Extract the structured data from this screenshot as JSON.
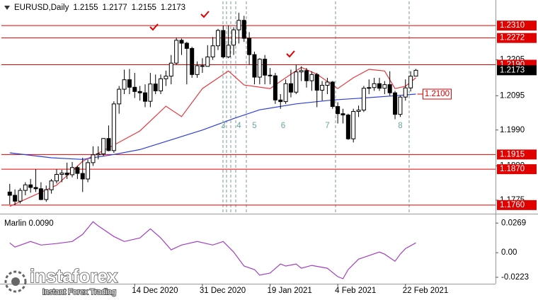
{
  "chart_data": [
    {
      "type": "candlestick",
      "symbol": "EURUSD,Daily",
      "xlim": [
        -1.6,
        93.3
      ],
      "ylim": [
        1.1738,
        1.2384
      ],
      "xticks": [
        {
          "value": 24,
          "label": "14 Dec 2020"
        },
        {
          "value": 37,
          "label": "31 Dec 2020"
        },
        {
          "value": 50,
          "label": "19 Jan 2021"
        },
        {
          "value": 63,
          "label": "4 Feb 2021"
        },
        {
          "value": 76,
          "label": "22 Feb 2021"
        }
      ],
      "yticks": [
        1.2205,
        1.2095,
        {
          "value": 1.199,
          "label": "1.1990"
        },
        {
          "value": 1.188,
          "label": "1.1880"
        },
        1.1775
      ],
      "candles": {
        "up_color": "#ffffff",
        "down_color": "#000000",
        "open": [
          1.18,
          1.179,
          1.1772,
          1.1805,
          1.1822,
          1.1814,
          1.181,
          1.1777,
          1.1807,
          1.1834,
          1.1854,
          1.1858,
          1.1853,
          1.1875,
          1.1857,
          1.184,
          1.189,
          1.1914,
          1.1917,
          1.1964,
          1.1927,
          1.207,
          1.2115,
          1.2144,
          1.2121,
          1.2108,
          1.2104,
          1.2078,
          1.2131,
          1.211,
          1.2147,
          1.2155,
          1.2195,
          1.2265,
          1.2256,
          1.224,
          1.216,
          1.2187,
          1.2185,
          1.2214,
          1.2248,
          1.2295,
          1.2214,
          1.225,
          1.2297,
          1.2326,
          1.2271,
          1.2221,
          1.2152,
          1.2207,
          1.2158,
          1.2156,
          1.2082,
          1.2077,
          1.2132,
          1.2106,
          1.2168,
          1.2172,
          1.2141,
          1.216,
          1.2112,
          1.2127,
          1.2137,
          1.2062,
          1.204,
          1.2036,
          1.1963,
          1.2047,
          1.2051,
          1.2118,
          1.212,
          1.2132,
          1.2118,
          1.2129,
          1.2104,
          1.2038,
          1.2091,
          1.2119,
          1.2155
        ],
        "high": [
          1.1825,
          1.1808,
          1.1812,
          1.183,
          1.184,
          1.187,
          1.183,
          1.182,
          1.184,
          1.187,
          1.1868,
          1.189,
          1.1892,
          1.188,
          1.1905,
          1.19,
          1.194,
          1.194,
          1.1965,
          1.2004,
          1.2078,
          1.2125,
          1.2175,
          1.2177,
          1.2165,
          1.2125,
          1.213,
          1.2165,
          1.216,
          1.216,
          1.2172,
          1.222,
          1.2273,
          1.227,
          1.226,
          1.2245,
          1.22,
          1.221,
          1.225,
          1.2275,
          1.23,
          1.231,
          1.231,
          1.2305,
          1.2349,
          1.234,
          1.229,
          1.223,
          1.221,
          1.222,
          1.218,
          1.2165,
          1.21,
          1.2145,
          1.2175,
          1.219,
          1.2185,
          1.218,
          1.217,
          1.2165,
          1.214,
          1.215,
          1.214,
          1.2075,
          1.2055,
          1.204,
          1.2055,
          1.2065,
          1.2125,
          1.2145,
          1.215,
          1.215,
          1.214,
          1.217,
          1.211,
          1.2095,
          1.2145,
          1.217,
          1.2177
        ],
        "low": [
          1.1762,
          1.176,
          1.1765,
          1.179,
          1.1798,
          1.18,
          1.1775,
          1.177,
          1.1795,
          1.1826,
          1.183,
          1.184,
          1.1845,
          1.184,
          1.18,
          1.183,
          1.188,
          1.19,
          1.191,
          1.1925,
          1.192,
          1.204,
          1.21,
          1.21,
          1.2088,
          1.208,
          1.206,
          1.206,
          1.21,
          1.21,
          1.2125,
          1.213,
          1.219,
          1.222,
          1.213,
          1.215,
          1.215,
          1.2165,
          1.2185,
          1.2205,
          1.2235,
          1.221,
          1.221,
          1.222,
          1.2255,
          1.226,
          1.219,
          1.213,
          1.213,
          1.213,
          1.213,
          1.207,
          1.2055,
          1.207,
          1.209,
          1.21,
          1.214,
          1.212,
          1.211,
          1.206,
          1.208,
          1.21,
          1.2055,
          1.201,
          1.201,
          1.196,
          1.1952,
          1.203,
          1.2045,
          1.21,
          1.211,
          1.211,
          1.21,
          1.2095,
          1.2023,
          1.203,
          1.208,
          1.2108,
          1.2155
        ],
        "close": [
          1.179,
          1.1772,
          1.1805,
          1.1822,
          1.1814,
          1.181,
          1.1777,
          1.1807,
          1.1834,
          1.1854,
          1.1858,
          1.1853,
          1.1875,
          1.1857,
          1.184,
          1.189,
          1.1914,
          1.1917,
          1.1964,
          1.1927,
          1.207,
          1.2115,
          1.2144,
          1.2121,
          1.2108,
          1.2104,
          1.2078,
          1.2131,
          1.211,
          1.2147,
          1.2155,
          1.2195,
          1.2265,
          1.2256,
          1.224,
          1.216,
          1.2187,
          1.2185,
          1.2214,
          1.2248,
          1.2295,
          1.2214,
          1.225,
          1.2297,
          1.2326,
          1.2271,
          1.2221,
          1.2152,
          1.2207,
          1.2158,
          1.2156,
          1.2082,
          1.2077,
          1.2132,
          1.2106,
          1.2168,
          1.2172,
          1.2141,
          1.216,
          1.2112,
          1.2127,
          1.2137,
          1.2062,
          1.204,
          1.2036,
          1.1963,
          1.2047,
          1.2051,
          1.2118,
          1.212,
          1.2132,
          1.2118,
          1.2129,
          1.2104,
          1.2038,
          1.2091,
          1.2119,
          1.2155,
          1.2173
        ]
      },
      "lines": [
        {
          "color": "#e8383d",
          "x": [
            0,
            9,
            14,
            20,
            25,
            30,
            33,
            37,
            42,
            45,
            50,
            53,
            56,
            59,
            63,
            66,
            69,
            72,
            74,
            76,
            78
          ],
          "values": [
            1.1756,
            1.1821,
            1.1894,
            1.1944,
            1.1987,
            1.2063,
            1.2031,
            1.2117,
            1.2171,
            1.2128,
            1.2117,
            1.215,
            1.2182,
            1.2161,
            1.2117,
            1.215,
            1.2176,
            1.2171,
            1.2117,
            1.2124,
            1.215
          ]
        },
        {
          "color": "#2e3fd6",
          "x": [
            0,
            8,
            14,
            20,
            25,
            30,
            37,
            43,
            48,
            55,
            62,
            68,
            74,
            78
          ],
          "values": [
            1.192,
            1.1905,
            1.19,
            1.1915,
            1.193,
            1.1955,
            1.199,
            1.2025,
            1.2052,
            1.207,
            1.2082,
            1.2088,
            1.2095,
            1.21
          ]
        }
      ],
      "levels": [
        {
          "value": 1.231,
          "label": "1.2310"
        },
        {
          "value": 1.2272,
          "label": "1.2272"
        },
        {
          "value": 1.219,
          "label": "1.2190"
        },
        {
          "value": 1.1915,
          "label": "1.1915"
        },
        {
          "value": 1.187,
          "label": "1.1870"
        },
        {
          "value": 1.176,
          "label": "1.1760"
        }
      ],
      "level_color": "#e00000",
      "last_price": 1.2173,
      "ma_label": {
        "value": 1.21,
        "label": "1.2100"
      },
      "annotations": [
        {
          "text": "3",
          "x": 41,
          "y": 1.2002
        },
        {
          "text": "4",
          "x": 44,
          "y": 1.2002
        },
        {
          "text": "5",
          "x": 47,
          "y": 1.2002
        },
        {
          "text": "6",
          "x": 52.5,
          "y": 1.2002
        },
        {
          "text": "7",
          "x": 61,
          "y": 1.2002
        },
        {
          "text": "8",
          "x": 75,
          "y": 1.2002
        }
      ],
      "watermark": {
        "name": "instaforex",
        "tagline": "Instant Forex Trading"
      }
    },
    {
      "type": "line",
      "title": "Marlin 0.0090",
      "color": "#a33fc2",
      "ylim": [
        -0.0275,
        0.0335
      ],
      "yticks": [
        0.0269,
        {
          "value": 0,
          "label": "0.00"
        },
        -0.0223
      ],
      "x": [
        0,
        1,
        4,
        6,
        9,
        12,
        14,
        16,
        17,
        20,
        22,
        25,
        27,
        29,
        31,
        33,
        36,
        39,
        41,
        43,
        45,
        47,
        48,
        50,
        52,
        53,
        55,
        56,
        58,
        61,
        63,
        64,
        65,
        67,
        69,
        71,
        72,
        74,
        75,
        76,
        78
      ],
      "values": [
        0.0089,
        0.0051,
        0.0102,
        0.007,
        0.0083,
        0.0102,
        0.0166,
        0.0281,
        0.0243,
        0.0147,
        0.0102,
        0.0134,
        0.0217,
        0.0134,
        0.0026,
        0.007,
        0.0102,
        0.007,
        0.0102,
        0.0006,
        -0.0121,
        -0.0153,
        -0.0204,
        -0.0185,
        -0.0102,
        -0.0121,
        -0.0102,
        -0.0141,
        -0.0115,
        -0.0141,
        -0.0217,
        -0.0236,
        -0.0153,
        -0.0058,
        -0.0026,
        0.0006,
        -0.0013,
        -0.0077,
        -0.0013,
        0.0038,
        0.009
      ]
    }
  ]
}
